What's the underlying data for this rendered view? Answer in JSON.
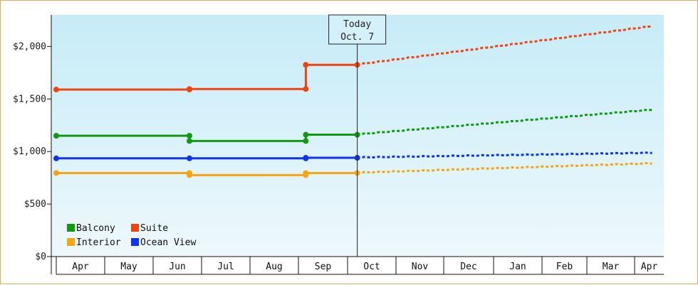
{
  "chart_data": {
    "type": "line",
    "x_axis_months": [
      "Apr",
      "May",
      "Jun",
      "Jul",
      "Aug",
      "Sep",
      "Oct",
      "Nov",
      "Dec",
      "Jan",
      "Feb",
      "Mar",
      "Apr"
    ],
    "y_ticks": [
      "$0",
      "$500",
      "$1,000",
      "$1,500",
      "$2,000"
    ],
    "ylim": [
      0,
      2300
    ],
    "today_marker": {
      "line1": "Today",
      "line2": "Oct. 7",
      "month_position": 6.2
    },
    "grid": false,
    "background": "light blue gradient",
    "legend_placement": "bottom-left",
    "series": [
      {
        "name": "Balcony",
        "color": "#119911",
        "history": [
          [
            0,
            1150
          ],
          [
            2.75,
            1150
          ],
          [
            2.75,
            1100
          ],
          [
            5.15,
            1100
          ],
          [
            5.15,
            1160
          ],
          [
            6.2,
            1160
          ]
        ],
        "forecast": [
          [
            6.2,
            1160
          ],
          [
            12.6,
            1395
          ]
        ]
      },
      {
        "name": "Suite",
        "color": "#ee4411",
        "history": [
          [
            0,
            1590
          ],
          [
            2.75,
            1590
          ],
          [
            2.75,
            1595
          ],
          [
            5.15,
            1595
          ],
          [
            5.15,
            1825
          ],
          [
            6.2,
            1825
          ]
        ],
        "forecast": [
          [
            6.2,
            1825
          ],
          [
            12.6,
            2190
          ]
        ]
      },
      {
        "name": "Interior",
        "color": "#f5a511",
        "history": [
          [
            0,
            795
          ],
          [
            2.75,
            795
          ],
          [
            2.75,
            775
          ],
          [
            5.15,
            775
          ],
          [
            5.15,
            795
          ],
          [
            6.2,
            795
          ]
        ],
        "forecast": [
          [
            6.2,
            795
          ],
          [
            12.6,
            885
          ]
        ]
      },
      {
        "name": "Ocean View",
        "color": "#1133ee",
        "history": [
          [
            0,
            935
          ],
          [
            2.75,
            935
          ],
          [
            5.15,
            935
          ],
          [
            5.15,
            940
          ],
          [
            6.2,
            940
          ]
        ],
        "forecast": [
          [
            6.2,
            940
          ],
          [
            12.6,
            985
          ]
        ]
      }
    ],
    "markers": [
      {
        "series": "Balcony",
        "points": [
          [
            0,
            1150
          ],
          [
            2.75,
            1150
          ],
          [
            2.75,
            1100
          ],
          [
            5.15,
            1100
          ],
          [
            5.15,
            1160
          ],
          [
            6.2,
            1160
          ]
        ]
      },
      {
        "series": "Suite",
        "points": [
          [
            0,
            1590
          ],
          [
            2.75,
            1590
          ],
          [
            2.75,
            1595
          ],
          [
            5.15,
            1595
          ],
          [
            5.15,
            1825
          ],
          [
            6.2,
            1825
          ]
        ]
      },
      {
        "series": "Interior",
        "points": [
          [
            0,
            795
          ],
          [
            2.75,
            795
          ],
          [
            2.75,
            775
          ],
          [
            5.15,
            775
          ],
          [
            5.15,
            795
          ],
          [
            6.2,
            795
          ]
        ]
      },
      {
        "series": "Ocean View",
        "points": [
          [
            0,
            935
          ],
          [
            2.75,
            935
          ],
          [
            5.15,
            935
          ],
          [
            5.15,
            940
          ],
          [
            6.2,
            940
          ]
        ]
      }
    ]
  }
}
